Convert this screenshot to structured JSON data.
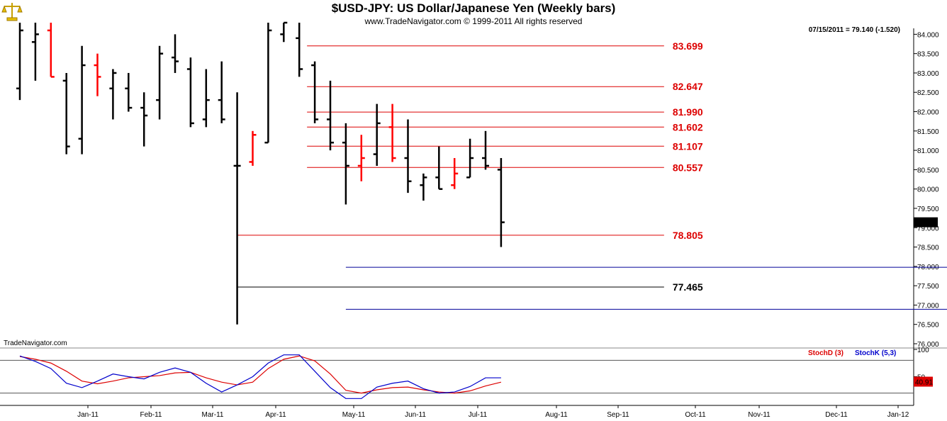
{
  "header": {
    "title": "$USD-JPY:  US Dollar/Japanese Yen  (Weekly bars)",
    "subtitle": "www.TradeNavigator.com © 1999-2011 All rights reserved",
    "last_quote": "07/15/2011 = 79.140 (-1.520)",
    "watermark": "TradeNavigator.com",
    "logo_icon": "scales-icon"
  },
  "colors": {
    "up_bar": "#000000",
    "down_bar": "#ff0000",
    "green_tick": "#22aa22",
    "red_level": "#dd0000",
    "black_level": "#000000",
    "blue_level": "#000099",
    "stoch_d": "#dd0000",
    "stoch_k": "#0000cc"
  },
  "chart_data": [
    {
      "type": "ohlc",
      "x_axis_labels": [
        "Jan-11",
        "Feb-11",
        "Mar-11",
        "Apr-11",
        "May-11",
        "Jun-11",
        "Jul-11",
        "Aug-11",
        "Sep-11",
        "Oct-11",
        "Nov-11",
        "Dec-11",
        "Jan-12"
      ],
      "ylim": [
        76.0,
        84.3
      ],
      "y_ticks": [
        "76.000",
        "76.500",
        "77.000",
        "77.500",
        "78.000",
        "78.500",
        "79.000",
        "79.500",
        "80.000",
        "80.500",
        "81.000",
        "81.500",
        "82.000",
        "82.500",
        "83.000",
        "83.500",
        "84.000"
      ],
      "last_price_label": "79.140",
      "bars": [
        {
          "o": 82.6,
          "h": 84.3,
          "l": 82.3,
          "c": 84.1,
          "color": "black"
        },
        {
          "o": 83.8,
          "h": 84.3,
          "l": 82.8,
          "c": 84.0,
          "color": "black"
        },
        {
          "o": 84.1,
          "h": 84.3,
          "l": 82.9,
          "c": 82.9,
          "color": "red"
        },
        {
          "o": 82.8,
          "h": 83.0,
          "l": 80.9,
          "c": 81.1,
          "color": "black"
        },
        {
          "o": 81.3,
          "h": 83.7,
          "l": 80.9,
          "c": 83.2,
          "color": "black"
        },
        {
          "o": 83.2,
          "h": 83.5,
          "l": 82.4,
          "c": 82.9,
          "color": "red"
        },
        {
          "o": 82.6,
          "h": 83.1,
          "l": 81.8,
          "c": 83.0,
          "color": "black"
        },
        {
          "o": 82.6,
          "h": 83.0,
          "l": 82.0,
          "c": 82.1,
          "color": "black"
        },
        {
          "o": 82.1,
          "h": 82.5,
          "l": 81.1,
          "c": 81.9,
          "color": "black"
        },
        {
          "o": 82.3,
          "h": 83.7,
          "l": 81.8,
          "c": 83.5,
          "color": "black"
        },
        {
          "o": 83.4,
          "h": 84.0,
          "l": 83.0,
          "c": 83.3,
          "color": "black"
        },
        {
          "o": 83.1,
          "h": 83.4,
          "l": 81.6,
          "c": 81.7,
          "color": "black"
        },
        {
          "o": 81.8,
          "h": 83.1,
          "l": 81.6,
          "c": 82.3,
          "color": "black"
        },
        {
          "o": 82.3,
          "h": 83.3,
          "l": 81.7,
          "c": 81.8,
          "color": "black"
        },
        {
          "o": 80.6,
          "h": 82.5,
          "l": 76.5,
          "c": 80.6,
          "color": "black"
        },
        {
          "o": 80.7,
          "h": 81.5,
          "l": 80.6,
          "c": 81.4,
          "color": "red"
        },
        {
          "o": 81.2,
          "h": 84.3,
          "l": 81.2,
          "c": 84.1,
          "color": "black"
        },
        {
          "o": 84.0,
          "h": 84.3,
          "l": 83.8,
          "c": 84.3,
          "color": "black"
        },
        {
          "o": 83.9,
          "h": 84.3,
          "l": 82.9,
          "c": 83.1,
          "color": "black"
        },
        {
          "o": 83.2,
          "h": 83.3,
          "l": 81.7,
          "c": 81.8,
          "color": "black"
        },
        {
          "o": 81.8,
          "h": 82.8,
          "l": 81.0,
          "c": 81.2,
          "color": "black"
        },
        {
          "o": 81.2,
          "h": 81.7,
          "l": 79.6,
          "c": 80.6,
          "color": "black"
        },
        {
          "o": 80.6,
          "h": 81.4,
          "l": 80.2,
          "c": 80.8,
          "color": "red"
        },
        {
          "o": 80.9,
          "h": 82.2,
          "l": 80.6,
          "c": 81.7,
          "color": "black"
        },
        {
          "o": 81.6,
          "h": 82.2,
          "l": 80.7,
          "c": 80.8,
          "color": "red"
        },
        {
          "o": 80.8,
          "h": 81.8,
          "l": 79.9,
          "c": 80.2,
          "color": "black"
        },
        {
          "o": 80.1,
          "h": 80.4,
          "l": 79.7,
          "c": 80.3,
          "color": "black"
        },
        {
          "o": 80.3,
          "h": 81.1,
          "l": 80.0,
          "c": 80.0,
          "color": "black"
        },
        {
          "o": 80.1,
          "h": 80.8,
          "l": 80.0,
          "c": 80.4,
          "color": "red"
        },
        {
          "o": 80.3,
          "h": 81.3,
          "l": 80.3,
          "c": 80.8,
          "color": "black"
        },
        {
          "o": 80.8,
          "h": 81.5,
          "l": 80.5,
          "c": 80.6,
          "color": "black"
        },
        {
          "o": 80.5,
          "h": 80.8,
          "l": 78.5,
          "c": 79.14,
          "color": "black"
        }
      ],
      "levels": [
        {
          "value": 83.699,
          "label": "83.699",
          "color": "red",
          "start_bar": 18.5,
          "end_week": 41.5
        },
        {
          "value": 82.647,
          "label": "82.647",
          "color": "red",
          "start_bar": 18.5,
          "end_week": 41.5
        },
        {
          "value": 81.99,
          "label": "81.990",
          "color": "red",
          "start_bar": 18.5,
          "end_week": 41.5
        },
        {
          "value": 81.602,
          "label": "81.602",
          "color": "red",
          "start_bar": 18.5,
          "end_week": 41.5
        },
        {
          "value": 81.107,
          "label": "81.107",
          "color": "red",
          "start_bar": 18.5,
          "end_week": 41.5
        },
        {
          "value": 80.557,
          "label": "80.557",
          "color": "red",
          "start_bar": 18.5,
          "end_week": 41.5
        },
        {
          "value": 78.805,
          "label": "78.805",
          "color": "red",
          "start_bar": 14,
          "end_week": 41.5
        },
        {
          "value": 77.465,
          "label": "77.465",
          "color": "black",
          "start_bar": 14,
          "end_week": 41.5
        },
        {
          "value": 77.977,
          "label": "77.977",
          "color": "blue",
          "start_bar": 21,
          "end_week": 61
        },
        {
          "value": 76.89,
          "label": "76.890",
          "color": "blue",
          "start_bar": 21,
          "end_week": 61
        }
      ]
    },
    {
      "type": "line",
      "ylim": [
        0,
        100
      ],
      "y_ticks": [
        "100",
        "50"
      ],
      "last_value_label": "40.91",
      "series": [
        {
          "name": "StochD (3)",
          "color": "red",
          "values": [
            87,
            82,
            75,
            60,
            42,
            37,
            42,
            48,
            50,
            52,
            57,
            58,
            48,
            40,
            35,
            40,
            65,
            82,
            88,
            79,
            55,
            25,
            20,
            26,
            30,
            31,
            26,
            22,
            20,
            24,
            33,
            40
          ]
        },
        {
          "name": "StochK (5,3)",
          "color": "blue",
          "values": [
            88,
            78,
            65,
            38,
            30,
            42,
            55,
            50,
            46,
            58,
            66,
            58,
            38,
            22,
            35,
            50,
            75,
            90,
            90,
            60,
            30,
            10,
            10,
            31,
            38,
            42,
            28,
            20,
            22,
            32,
            48,
            48
          ]
        }
      ]
    }
  ]
}
